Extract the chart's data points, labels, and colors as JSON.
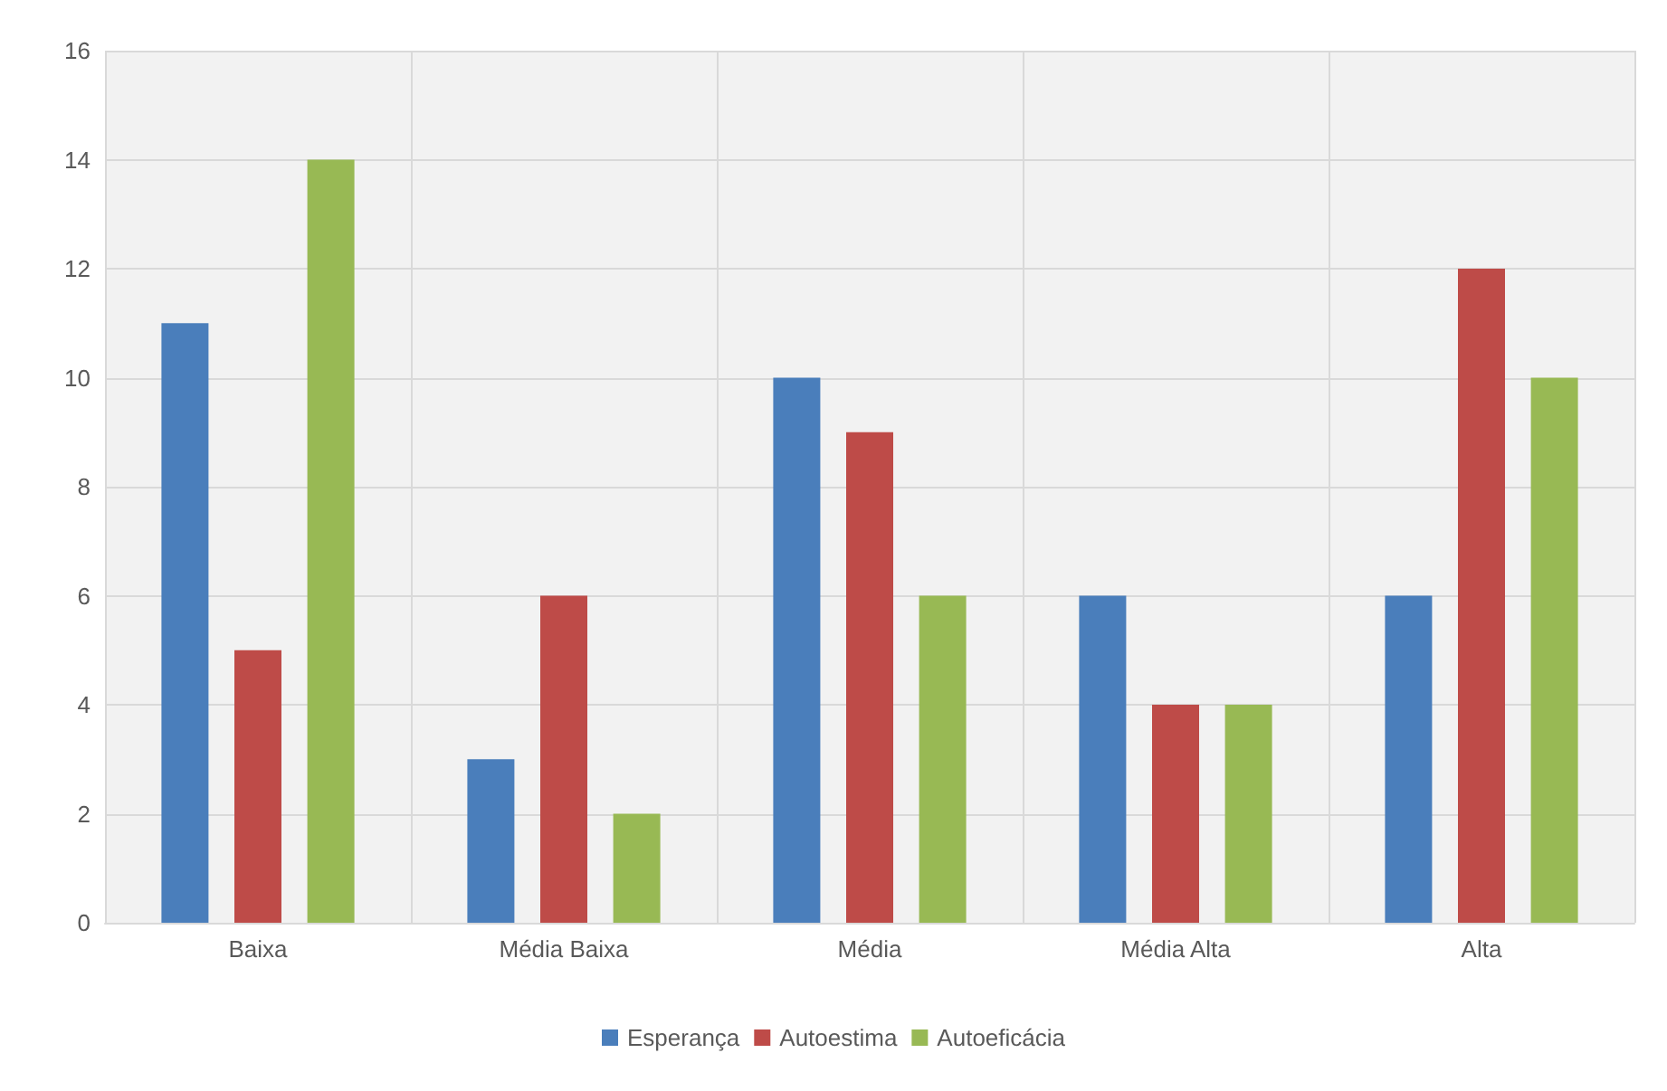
{
  "chart_data": {
    "type": "bar",
    "categories": [
      "Baixa",
      "Média Baixa",
      "Média",
      "Média Alta",
      "Alta"
    ],
    "series": [
      {
        "name": "Esperança",
        "color": "#4a7ebb",
        "values": [
          11,
          3,
          10,
          6,
          6
        ]
      },
      {
        "name": "Autoestima",
        "color": "#be4b48",
        "values": [
          5,
          6,
          9,
          4,
          12
        ]
      },
      {
        "name": "Autoeficácia",
        "color": "#98b954",
        "values": [
          14,
          2,
          6,
          4,
          10
        ]
      }
    ],
    "ylim": [
      0,
      16
    ],
    "yticks": [
      0,
      2,
      4,
      6,
      8,
      10,
      12,
      14,
      16
    ],
    "grid": true,
    "legend": "bottom"
  }
}
